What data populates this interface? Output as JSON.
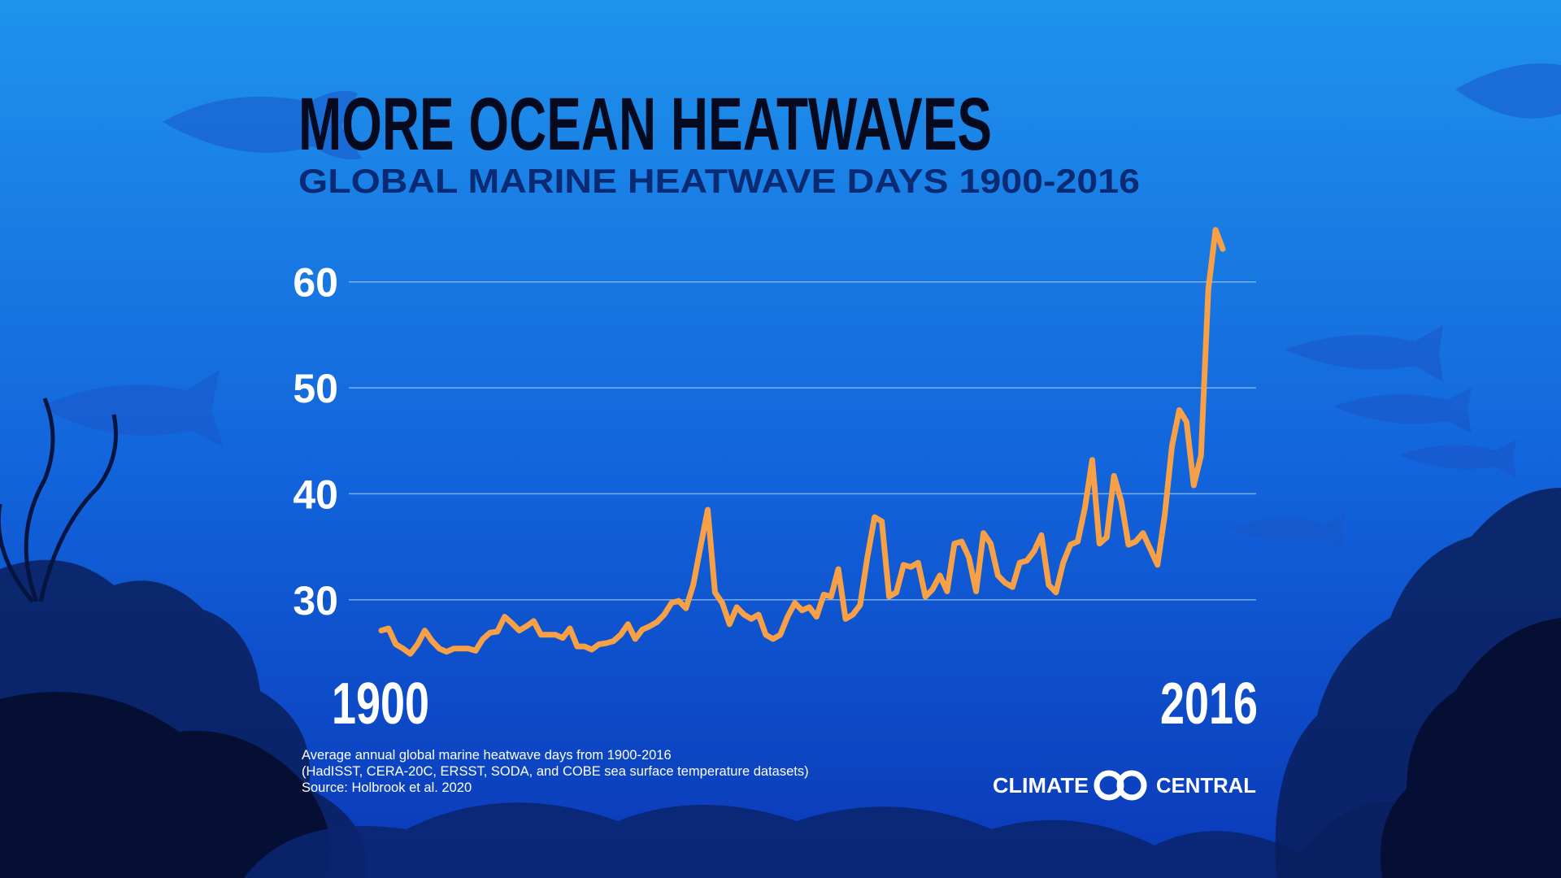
{
  "chart_data": {
    "type": "line",
    "title": "MORE OCEAN HEATWAVES",
    "subtitle": "GLOBAL MARINE HEATWAVE DAYS 1900-2016",
    "x": [
      1900,
      1901,
      1902,
      1903,
      1904,
      1905,
      1906,
      1907,
      1908,
      1909,
      1910,
      1911,
      1912,
      1913,
      1914,
      1915,
      1916,
      1917,
      1918,
      1919,
      1920,
      1921,
      1922,
      1923,
      1924,
      1925,
      1926,
      1927,
      1928,
      1929,
      1930,
      1931,
      1932,
      1933,
      1934,
      1935,
      1936,
      1937,
      1938,
      1939,
      1940,
      1941,
      1942,
      1943,
      1944,
      1945,
      1946,
      1947,
      1948,
      1949,
      1950,
      1951,
      1952,
      1953,
      1954,
      1955,
      1956,
      1957,
      1958,
      1959,
      1960,
      1961,
      1962,
      1963,
      1964,
      1965,
      1966,
      1967,
      1968,
      1969,
      1970,
      1971,
      1972,
      1973,
      1974,
      1975,
      1976,
      1977,
      1978,
      1979,
      1980,
      1981,
      1982,
      1983,
      1984,
      1985,
      1986,
      1987,
      1988,
      1989,
      1990,
      1991,
      1992,
      1993,
      1994,
      1995,
      1996,
      1997,
      1998,
      1999,
      2000,
      2001,
      2002,
      2003,
      2004,
      2005,
      2006,
      2007,
      2008,
      2009,
      2010,
      2011,
      2012,
      2013,
      2014,
      2015,
      2016
    ],
    "values": [
      27.1,
      27.3,
      25.8,
      25.4,
      24.9,
      25.8,
      27.1,
      26.1,
      25.4,
      25.1,
      25.4,
      25.4,
      25.4,
      25.2,
      26.3,
      26.9,
      27.0,
      28.4,
      27.8,
      27.1,
      27.5,
      28.0,
      26.7,
      26.7,
      26.7,
      26.4,
      27.3,
      25.6,
      25.6,
      25.3,
      25.8,
      25.9,
      26.1,
      26.7,
      27.7,
      26.3,
      27.2,
      27.5,
      27.9,
      28.6,
      29.7,
      29.9,
      29.2,
      31.4,
      35.0,
      38.5,
      30.7,
      29.7,
      27.7,
      29.3,
      28.6,
      28.2,
      28.6,
      26.7,
      26.3,
      26.7,
      28.4,
      29.7,
      29.0,
      29.3,
      28.4,
      30.5,
      30.3,
      32.9,
      28.2,
      28.6,
      29.5,
      34.0,
      37.8,
      37.4,
      30.3,
      30.7,
      33.3,
      33.1,
      33.5,
      30.3,
      31.0,
      32.3,
      30.8,
      35.3,
      35.5,
      34.0,
      30.8,
      36.3,
      35.3,
      32.3,
      31.6,
      31.2,
      33.5,
      33.7,
      34.6,
      36.1,
      31.4,
      30.7,
      33.5,
      35.2,
      35.5,
      38.7,
      43.2,
      35.3,
      35.9,
      41.7,
      39.3,
      35.2,
      35.5,
      36.3,
      34.8,
      33.3,
      38.0,
      44.5,
      47.9,
      46.8,
      40.8,
      43.6,
      59.3,
      64.9,
      63.1
    ],
    "color": "#f7a046",
    "xlim": [
      1900,
      2016
    ],
    "xticks": [
      1900,
      2016
    ],
    "ylim": [
      24,
      66
    ],
    "yticks": [
      30,
      40,
      50,
      60
    ],
    "grid": true,
    "notes": [
      "Average annual global marine heatwave days from 1900-2016",
      "(HadISST, CERA-20C, ERSST, SODA, and COBE sea surface temperature datasets)",
      "Source: Holbrook et al. 2020"
    ]
  },
  "brand": {
    "left": "CLIMATE",
    "right": "CENTRAL"
  }
}
